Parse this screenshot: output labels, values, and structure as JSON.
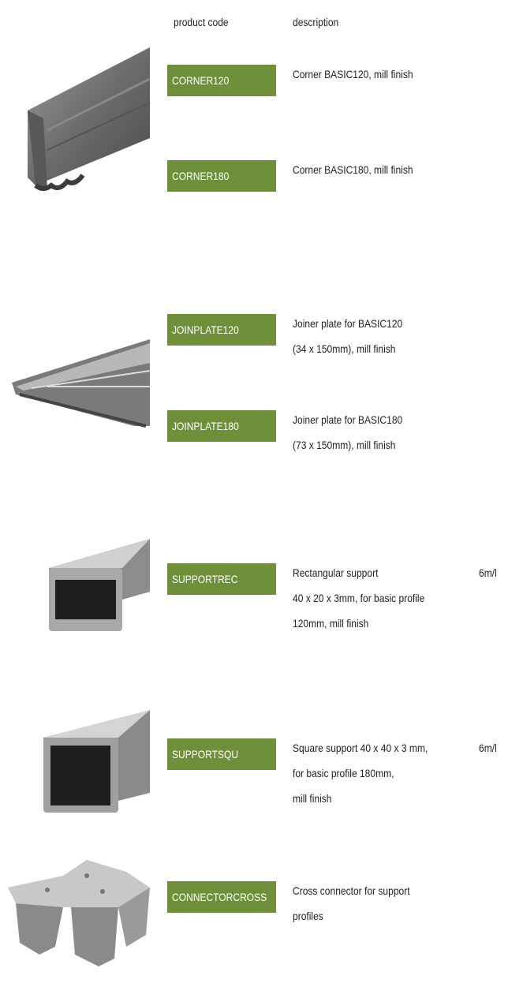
{
  "header": {
    "product_code": "product code",
    "description": "description"
  },
  "products": [
    {
      "code": "CORNER120",
      "description": [
        "Corner BASIC120, mill finish"
      ]
    },
    {
      "code": "CORNER180",
      "description": [
        "Corner BASIC180, mill finish"
      ]
    },
    {
      "code": "JOINPLATE120",
      "description": [
        "Joiner plate for BASIC120",
        "(34 x 150mm), mill finish"
      ]
    },
    {
      "code": "JOINPLATE180",
      "description": [
        "Joiner plate for BASIC180",
        "(73 x 150mm), mill finish"
      ]
    },
    {
      "code": "SUPPORTREC",
      "description": [
        "Rectangular support",
        "40 x 20 x 3mm, for basic profile",
        "120mm, mill finish"
      ],
      "unit": "6m/l"
    },
    {
      "code": "SUPPORTSQU",
      "description": [
        "Square support 40 x 40 x 3 mm,",
        "for basic profile 180mm,",
        "mill finish"
      ],
      "unit": "6m/l"
    },
    {
      "code": "CONNECTORCROSS",
      "description": [
        "Cross connector for support",
        "profiles"
      ]
    }
  ]
}
